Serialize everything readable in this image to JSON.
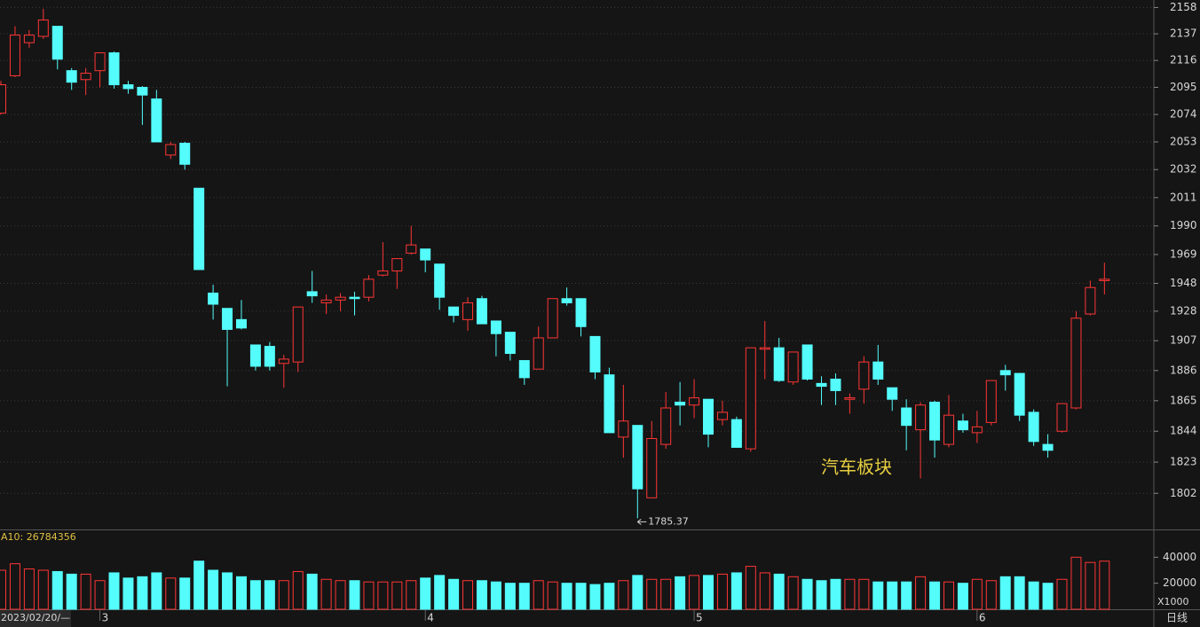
{
  "period": "日线",
  "chart_data": [
    {
      "type": "candlestick",
      "title": "汽车板块",
      "categories": [
        "2023/02/20/—",
        null,
        null,
        null,
        null,
        null,
        null,
        "3",
        null,
        null,
        null,
        null,
        null,
        null,
        null,
        null,
        null,
        null,
        null,
        null,
        null,
        null,
        null,
        null,
        null,
        null,
        null,
        null,
        null,
        null,
        "4",
        null,
        null,
        null,
        null,
        null,
        null,
        null,
        null,
        null,
        null,
        null,
        null,
        null,
        null,
        null,
        null,
        null,
        null,
        "5",
        null,
        null,
        null,
        null,
        null,
        null,
        null,
        null,
        null,
        null,
        null,
        null,
        null,
        null,
        null,
        null,
        null,
        null,
        null,
        "6",
        null,
        null,
        null,
        null,
        null,
        null,
        null,
        null,
        null
      ],
      "open": [
        2075,
        2104,
        2130,
        2135,
        2143,
        2108,
        2101,
        2108,
        2122,
        2097,
        2095,
        2086,
        2043,
        2052,
        2018,
        1941,
        1930,
        1922,
        1904,
        1903,
        1891,
        1892,
        1942,
        1934,
        1936,
        1938,
        1938,
        1954,
        1957,
        1970,
        1973,
        1962,
        1931,
        1922,
        1937,
        1921,
        1913,
        1893,
        1887,
        1909,
        1937,
        1937,
        1910,
        1883,
        1840,
        1848,
        1799,
        1835,
        1864,
        1862,
        1866,
        1852,
        1852,
        1832,
        1901,
        1902,
        1878,
        1904,
        1877,
        1880,
        1866,
        1873,
        1892,
        1874,
        1860,
        1845,
        1864,
        1835,
        1851,
        1843,
        1850,
        1886,
        1884,
        1857,
        1835,
        1844,
        1860,
        1926,
        1950
      ],
      "high": [
        2100,
        2143,
        2140,
        2157,
        2143,
        2110,
        2110,
        2122,
        2123,
        2100,
        2096,
        2093,
        2053,
        2053,
        2018,
        1947,
        1930,
        1936,
        1904,
        1906,
        1897,
        1931,
        1957,
        1940,
        1941,
        1942,
        1954,
        1978,
        1966,
        1990,
        1973,
        1962,
        1931,
        1938,
        1939,
        1921,
        1913,
        1893,
        1917,
        1937,
        1945,
        1937,
        1910,
        1888,
        1876,
        1848,
        1851,
        1871,
        1878,
        1880,
        1866,
        1865,
        1854,
        1902,
        1921,
        1909,
        1899,
        1904,
        1882,
        1884,
        1870,
        1896,
        1904,
        1874,
        1866,
        1864,
        1865,
        1869,
        1856,
        1858,
        1879,
        1890,
        1884,
        1859,
        1842,
        1863,
        1928,
        1950,
        1963
      ],
      "low": [
        2074,
        2103,
        2126,
        2133,
        2109,
        2093,
        2089,
        2095,
        2094,
        2090,
        2066,
        2053,
        2040,
        2032,
        1958,
        1922,
        1875,
        1915,
        1886,
        1886,
        1874,
        1885,
        1934,
        1926,
        1928,
        1925,
        1935,
        1953,
        1944,
        1969,
        1956,
        1929,
        1920,
        1914,
        1919,
        1896,
        1893,
        1876,
        1887,
        1909,
        1932,
        1910,
        1880,
        1843,
        1826,
        1785.37,
        1799,
        1832,
        1848,
        1853,
        1833,
        1848,
        1833,
        1830,
        1880,
        1878,
        1876,
        1879,
        1862,
        1862,
        1856,
        1863,
        1876,
        1858,
        1831,
        1812,
        1826,
        1833,
        1843,
        1836,
        1848,
        1872,
        1851,
        1834,
        1826,
        1843,
        1859,
        1925,
        1940
      ],
      "close": [
        2097,
        2136,
        2136,
        2148,
        2117,
        2099,
        2106,
        2122,
        2097,
        2094,
        2089,
        2053,
        2051,
        2036,
        1958,
        1933,
        1915,
        1916,
        1889,
        1889,
        1894,
        1931,
        1939,
        1936,
        1938,
        1937,
        1951,
        1957,
        1966,
        1976,
        1965,
        1938,
        1925,
        1934,
        1919,
        1912,
        1898,
        1881,
        1909,
        1937,
        1934,
        1917,
        1885,
        1843,
        1851,
        1805,
        1839,
        1860,
        1862,
        1867,
        1842,
        1857,
        1833,
        1902,
        1902,
        1879,
        1899,
        1880,
        1875,
        1872,
        1867,
        1892,
        1880,
        1866,
        1848,
        1862,
        1838,
        1855,
        1845,
        1847,
        1879,
        1883,
        1855,
        1837,
        1831,
        1863,
        1923,
        1945,
        1951
      ],
      "up_color": "#ff3535",
      "down_color": "#54fcfc",
      "ylim": [
        1778,
        2164
      ],
      "log_scale": true,
      "grid": true,
      "yticks": [
        2158,
        2137,
        2116,
        2095,
        2074,
        2053,
        2032,
        2011,
        1990,
        1969,
        1948,
        1928,
        1907,
        1886,
        1865,
        1844,
        1823,
        1802
      ]
    },
    {
      "type": "bar",
      "title": "A10: 26784356",
      "unit": "X1000",
      "values": [
        30000,
        35000,
        31000,
        30000,
        29000,
        27000,
        27000,
        22000,
        28000,
        24000,
        25000,
        28000,
        24000,
        24000,
        37000,
        30000,
        28000,
        25000,
        22000,
        22000,
        22000,
        29000,
        27000,
        23000,
        22000,
        22000,
        21000,
        21000,
        21000,
        22000,
        24000,
        26000,
        23000,
        22000,
        22000,
        21000,
        20000,
        20000,
        22000,
        21000,
        20000,
        20000,
        19000,
        20000,
        22000,
        26000,
        23000,
        23000,
        25000,
        26000,
        26000,
        27000,
        28000,
        33000,
        28000,
        27000,
        25000,
        23000,
        22000,
        23000,
        23000,
        23000,
        21000,
        21000,
        21000,
        25000,
        21000,
        21000,
        20000,
        23000,
        22000,
        25000,
        25000,
        21000,
        20000,
        23000,
        40000,
        36000,
        37000
      ],
      "ylim": [
        0,
        60000
      ],
      "yticks": [
        20000,
        40000
      ]
    }
  ]
}
